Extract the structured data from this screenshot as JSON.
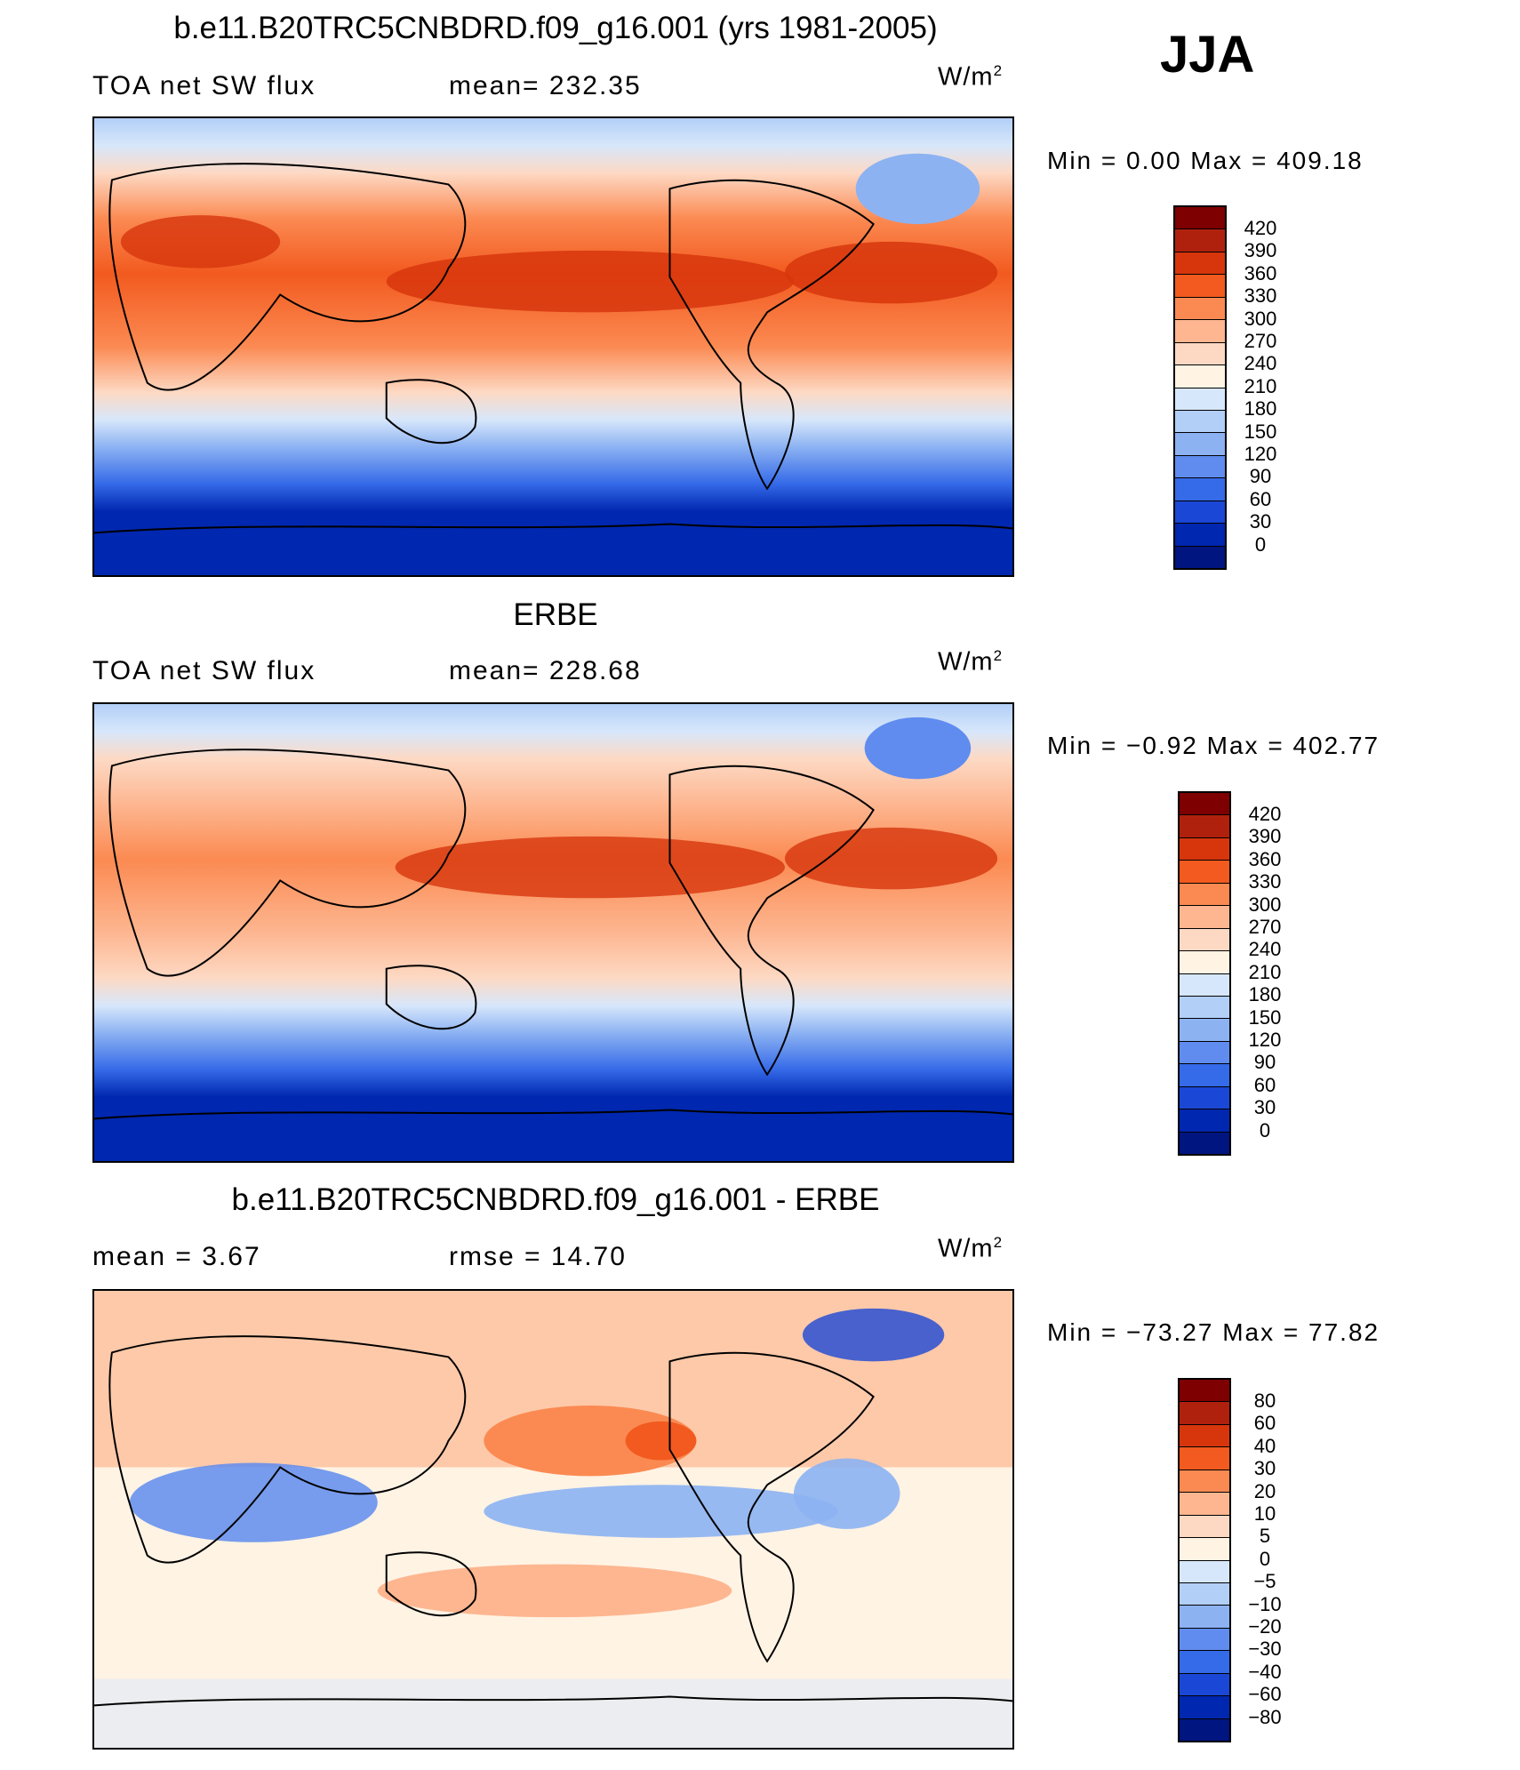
{
  "season": "JJA",
  "panels": [
    {
      "id": "model",
      "title": "b.e11.B20TRC5CNBDRD.f09_g16.001 (yrs 1981-2005)",
      "left_label": "TOA net SW flux",
      "center_label": "mean= 232.35",
      "units_base": "W/m",
      "units_exp": "2",
      "minmax": "Min =    0.00 Max = 409.18",
      "colorbar_labels": [
        "420",
        "390",
        "360",
        "330",
        "300",
        "270",
        "240",
        "210",
        "180",
        "150",
        "120",
        "90",
        "60",
        "30",
        "0"
      ],
      "colors": [
        "#7f0000",
        "#b0210d",
        "#d7360d",
        "#f25a1f",
        "#fb8a52",
        "#fdb690",
        "#fdd9c4",
        "#fff3e4",
        "#d7e7fb",
        "#b2cff7",
        "#8cb2f2",
        "#5f8cee",
        "#356ae8",
        "#1a47d6",
        "#0027b0",
        "#001580"
      ]
    },
    {
      "id": "obs",
      "title": "ERBE",
      "left_label": "TOA net SW flux",
      "center_label": "mean= 228.68",
      "units_base": "W/m",
      "units_exp": "2",
      "minmax": "Min =  −0.92 Max = 402.77",
      "colorbar_labels": [
        "420",
        "390",
        "360",
        "330",
        "300",
        "270",
        "240",
        "210",
        "180",
        "150",
        "120",
        "90",
        "60",
        "30",
        "0"
      ],
      "colors": [
        "#7f0000",
        "#b0210d",
        "#d7360d",
        "#f25a1f",
        "#fb8a52",
        "#fdb690",
        "#fdd9c4",
        "#fff3e4",
        "#d7e7fb",
        "#b2cff7",
        "#8cb2f2",
        "#5f8cee",
        "#356ae8",
        "#1a47d6",
        "#0027b0",
        "#001580"
      ]
    },
    {
      "id": "diff",
      "title": "b.e11.B20TRC5CNBDRD.f09_g16.001 - ERBE",
      "left_label": "mean =    3.67",
      "center_label": "rmse =   14.70",
      "units_base": "W/m",
      "units_exp": "2",
      "minmax": "Min = −73.27 Max =   77.82",
      "colorbar_labels": [
        "80",
        "60",
        "40",
        "30",
        "20",
        "10",
        "5",
        "0",
        "−5",
        "−10",
        "−20",
        "−30",
        "−40",
        "−60",
        "−80"
      ],
      "colors": [
        "#7f0000",
        "#b0210d",
        "#d7360d",
        "#f25a1f",
        "#fb8a52",
        "#fdb690",
        "#fdd9c4",
        "#fff3e4",
        "#d7e7fb",
        "#b2cff7",
        "#8cb2f2",
        "#5f8cee",
        "#356ae8",
        "#1a47d6",
        "#0027b0",
        "#001580"
      ]
    }
  ]
}
